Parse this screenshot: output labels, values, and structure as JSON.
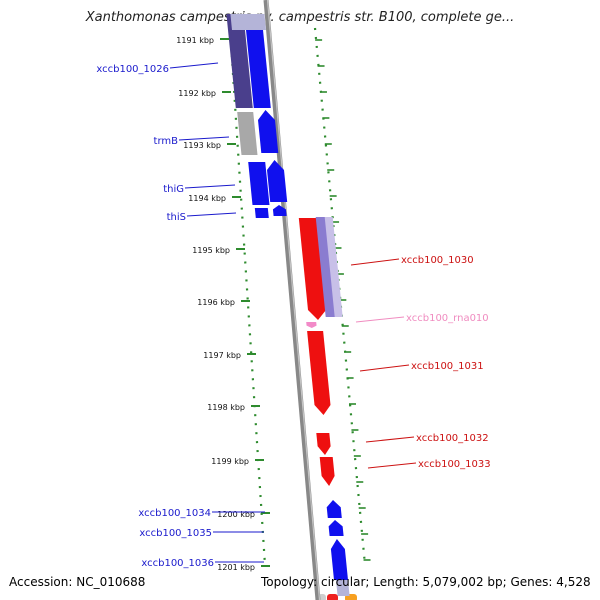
{
  "title": "Xanthomonas campestris pv. campestris str. B100, complete ge...",
  "footer": {
    "accession": "Accession: NC_010688",
    "stats": "Topology: circular; Length: 5,079,002 bp; Genes: 4,528"
  },
  "colors": {
    "forward_gene": "#1010ee",
    "forward_gene_dark": "#4a3f8c",
    "forward_gene_pale": "#b4b4d8",
    "forward_label": "#1a1acc",
    "reverse_gene": "#ee1010",
    "reverse_label": "#cc1111",
    "rna_label": "#f08cc0",
    "gray_gene": "#a8a8a8",
    "backbone": "#888888",
    "tick": "#2e8b2e"
  },
  "position_ticks": [
    "1191 kbp",
    "1192 kbp",
    "1193 kbp",
    "1194 kbp",
    "1195 kbp",
    "1196 kbp",
    "1197 kbp",
    "1198 kbp",
    "1199 kbp",
    "1200 kbp",
    "1201 kbp"
  ],
  "forward_genes": [
    "xccb100_1026",
    "trmB",
    "thiG",
    "thiS",
    "xccb100_1034",
    "xccb100_1035",
    "xccb100_1036"
  ],
  "reverse_genes": [
    "xccb100_1030",
    "xccb100_rna010",
    "xccb100_1031",
    "xccb100_1032",
    "xccb100_1033"
  ]
}
